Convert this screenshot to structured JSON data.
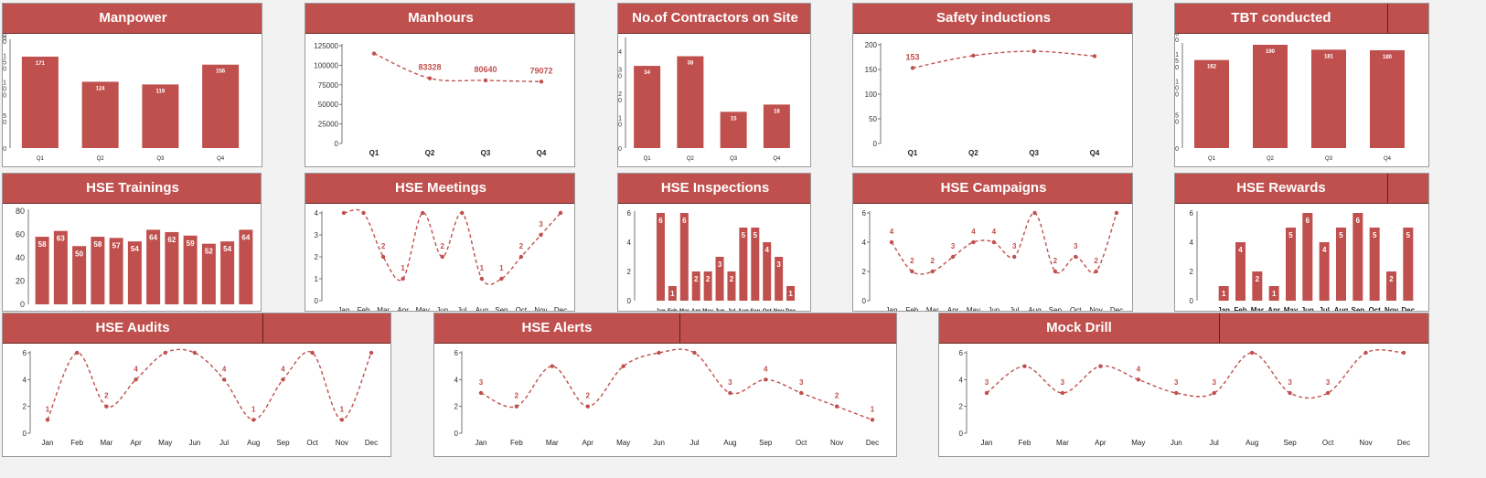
{
  "colors": {
    "accent": "#c0504d",
    "header_border": "#6e2b29",
    "text": "#222222"
  },
  "panels": [
    {
      "title": "Manpower",
      "chart_data": {
        "type": "bar",
        "categories": [
          "Q1",
          "Q2",
          "Q3",
          "Q4"
        ],
        "values": [
          171,
          124,
          119,
          156
        ],
        "data_labels": [
          "171",
          "124",
          "119",
          "156"
        ],
        "ylim": [
          0,
          200
        ],
        "yticks": [
          "0",
          "5\n0",
          "1\n0\n0",
          "1\n5\n0",
          "2\n0\n0",
          "2\n5\n0"
        ],
        "ytick_values": [
          0,
          50,
          100,
          150,
          200,
          250
        ]
      }
    },
    {
      "title": "Manhours",
      "chart_data": {
        "type": "line",
        "categories": [
          "Q1",
          "Q2",
          "Q3",
          "Q4"
        ],
        "values": [
          115000,
          83328,
          80640,
          79072
        ],
        "data_labels": [
          "",
          "83328",
          "80640",
          "79072"
        ],
        "ylim": [
          0,
          125000
        ],
        "yticks": [
          "0",
          "25000",
          "50000",
          "75000",
          "100000",
          "125000"
        ],
        "ytick_values": [
          0,
          25000,
          50000,
          75000,
          100000,
          125000
        ]
      }
    },
    {
      "title": "No.of Contractors on Site",
      "chart_data": {
        "type": "bar",
        "categories": [
          "Q1",
          "Q2",
          "Q3",
          "Q4"
        ],
        "values": [
          34,
          38,
          15,
          18
        ],
        "data_labels": [
          "34",
          "38",
          "15",
          "18"
        ],
        "ylim": [
          0,
          45
        ],
        "yticks": [
          "0",
          "1\n0",
          "2\n0",
          "3\n0",
          "4"
        ],
        "ytick_values": [
          0,
          10,
          20,
          30,
          40
        ]
      }
    },
    {
      "title": "Safety inductions",
      "chart_data": {
        "type": "line",
        "categories": [
          "Q1",
          "Q2",
          "Q3",
          "Q4"
        ],
        "values": [
          153,
          178,
          187,
          177
        ],
        "data_labels": [
          "153",
          "",
          "",
          ""
        ],
        "ylim": [
          0,
          200
        ],
        "yticks": [
          "0",
          "50",
          "100",
          "150",
          "200"
        ],
        "ytick_values": [
          0,
          50,
          100,
          150,
          200
        ]
      }
    },
    {
      "title": "TBT conducted",
      "chart_data": {
        "type": "bar",
        "categories": [
          "Q1",
          "Q2",
          "Q3",
          "Q4"
        ],
        "values": [
          162,
          190,
          181,
          180
        ],
        "data_labels": [
          "162",
          "190",
          "181",
          "180"
        ],
        "ylim": [
          0,
          190
        ],
        "yticks": [
          "0",
          "5\n0",
          "1\n0\n0",
          "1\n5\n0",
          "2\n0\n0",
          "2\n5\n0"
        ],
        "ytick_values": [
          0,
          50,
          100,
          150,
          200,
          250
        ]
      }
    },
    {
      "title": "HSE Trainings",
      "chart_data": {
        "type": "bar",
        "categories": [
          "Jan",
          "Feb",
          "Mar",
          "Apr",
          "May",
          "Jun",
          "Jul",
          "Aug",
          "Sep",
          "Oct",
          "Nov",
          "Dec"
        ],
        "values": [
          58,
          63,
          50,
          58,
          57,
          54,
          64,
          62,
          59,
          52,
          54,
          64
        ],
        "data_labels": [
          "58",
          "63",
          "50",
          "58",
          "57",
          "54",
          "64",
          "62",
          "59",
          "52",
          "54",
          "64"
        ],
        "ylim": [
          0,
          80
        ],
        "yticks": [
          "0",
          "20",
          "40",
          "60",
          "80"
        ],
        "ytick_values": [
          0,
          20,
          40,
          60,
          80
        ]
      }
    },
    {
      "title": "HSE Meetings",
      "chart_data": {
        "type": "line",
        "categories": [
          "Jan",
          "Feb",
          "Mar",
          "Apr",
          "May",
          "Jun",
          "Jul",
          "Aug",
          "Sep",
          "Oct",
          "Nov",
          "Dec"
        ],
        "values": [
          4,
          4,
          2,
          1,
          4,
          2,
          4,
          1,
          1,
          2,
          3,
          4
        ],
        "data_labels": [
          "",
          "",
          "2",
          "1",
          "",
          "2",
          "",
          "1",
          "1",
          "2",
          "3",
          ""
        ],
        "ylim": [
          0,
          4
        ],
        "yticks": [
          "0",
          "1",
          "2",
          "3",
          "4"
        ],
        "ytick_values": [
          0,
          1,
          2,
          3,
          4
        ]
      }
    },
    {
      "title": "HSE Inspections",
      "chart_data": {
        "type": "bar",
        "categories": [
          "Jan",
          "Feb",
          "Mar",
          "Apr",
          "May",
          "Jun",
          "Jul",
          "Aug",
          "Sep",
          "Oct",
          "Nov",
          "Dec"
        ],
        "values": [
          6,
          1,
          6,
          2,
          2,
          3,
          2,
          5,
          5,
          4,
          3,
          1
        ],
        "data_labels": [
          "6",
          "1",
          "6",
          "2",
          "2",
          "3",
          "2",
          "5",
          "5",
          "4",
          "3",
          "1"
        ],
        "ylim": [
          0,
          6
        ],
        "yticks": [
          "0",
          "2",
          "4",
          "6"
        ],
        "ytick_values": [
          0,
          2,
          4,
          6
        ]
      }
    },
    {
      "title": "HSE Campaigns",
      "chart_data": {
        "type": "line",
        "categories": [
          "Jan",
          "Feb",
          "Mar",
          "Apr",
          "May",
          "Jun",
          "Jul",
          "Aug",
          "Sep",
          "Oct",
          "Nov",
          "Dec"
        ],
        "values": [
          4,
          2,
          2,
          3,
          4,
          4,
          3,
          6,
          2,
          3,
          2,
          6
        ],
        "data_labels": [
          "4",
          "2",
          "2",
          "3",
          "4",
          "4",
          "3",
          "",
          "2",
          "3",
          "2",
          ""
        ],
        "ylim": [
          0,
          6
        ],
        "yticks": [
          "0",
          "2",
          "4",
          "6"
        ],
        "ytick_values": [
          0,
          2,
          4,
          6
        ]
      }
    },
    {
      "title": "HSE Rewards",
      "chart_data": {
        "type": "bar",
        "categories": [
          "Jan",
          "Feb",
          "Mar",
          "Apr",
          "May",
          "Jun",
          "Jul",
          "Aug",
          "Sep",
          "Oct",
          "Nov",
          "Dec"
        ],
        "values": [
          1,
          4,
          2,
          1,
          5,
          6,
          4,
          5,
          6,
          5,
          2,
          5
        ],
        "data_labels": [
          "1",
          "4",
          "2",
          "1",
          "5",
          "6",
          "4",
          "5",
          "6",
          "5",
          "2",
          "5"
        ],
        "ylim": [
          0,
          6
        ],
        "yticks": [
          "0",
          "2",
          "4",
          "6"
        ],
        "ytick_values": [
          0,
          2,
          4,
          6
        ]
      }
    },
    {
      "title": "HSE Audits",
      "chart_data": {
        "type": "line",
        "categories": [
          "Jan",
          "Feb",
          "Mar",
          "Apr",
          "May",
          "Jun",
          "Jul",
          "Aug",
          "Sep",
          "Oct",
          "Nov",
          "Dec"
        ],
        "values": [
          1,
          6,
          2,
          4,
          6,
          6,
          4,
          1,
          4,
          6,
          1,
          6
        ],
        "data_labels": [
          "1",
          "",
          "2",
          "4",
          "",
          "",
          "4",
          "1",
          "4",
          "",
          "1",
          ""
        ],
        "ylim": [
          0,
          6
        ],
        "yticks": [
          "0",
          "2",
          "4",
          "6"
        ],
        "ytick_values": [
          0,
          2,
          4,
          6
        ]
      }
    },
    {
      "title": "HSE Alerts",
      "chart_data": {
        "type": "line",
        "categories": [
          "Jan",
          "Feb",
          "Mar",
          "Apr",
          "May",
          "Jun",
          "Jul",
          "Aug",
          "Sep",
          "Oct",
          "Nov",
          "Dec"
        ],
        "values": [
          3,
          2,
          5,
          2,
          5,
          6,
          6,
          3,
          4,
          3,
          2,
          1
        ],
        "data_labels": [
          "3",
          "2",
          "",
          "2",
          "",
          "",
          "",
          "3",
          "4",
          "3",
          "2",
          "1"
        ],
        "ylim": [
          0,
          6
        ],
        "yticks": [
          "0",
          "2",
          "4",
          "6"
        ],
        "ytick_values": [
          0,
          2,
          4,
          6
        ]
      }
    },
    {
      "title": "Mock Drill",
      "chart_data": {
        "type": "line",
        "categories": [
          "Jan",
          "Feb",
          "Mar",
          "Apr",
          "May",
          "Jun",
          "Jul",
          "Aug",
          "Sep",
          "Oct",
          "Nov",
          "Dec"
        ],
        "values": [
          3,
          5,
          3,
          5,
          4,
          3,
          3,
          6,
          3,
          3,
          6,
          6
        ],
        "data_labels": [
          "3",
          "",
          "3",
          "",
          "4",
          "3",
          "3",
          "",
          "3",
          "3",
          "",
          ""
        ],
        "ylim": [
          0,
          6
        ],
        "yticks": [
          "0",
          "2",
          "4",
          "6"
        ],
        "ytick_values": [
          0,
          2,
          4,
          6
        ]
      }
    }
  ]
}
